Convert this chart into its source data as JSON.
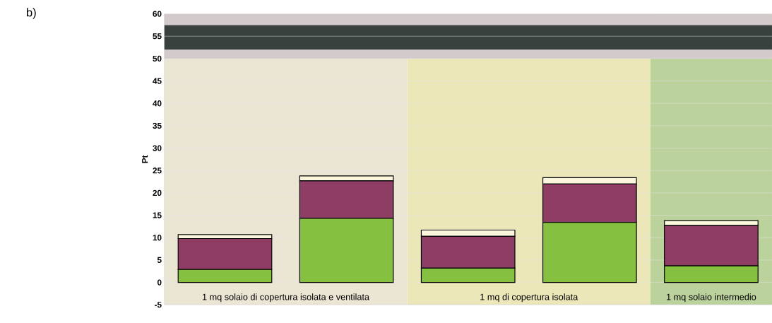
{
  "chart_data": {
    "type": "bar",
    "stacked": true,
    "ylabel": "Pt",
    "categories": [
      null,
      null,
      null,
      null,
      null
    ],
    "series": [
      {
        "color": "#86c040",
        "values": [
          2.9,
          14.3,
          3.2,
          13.4,
          3.7
        ]
      },
      {
        "color": "#8e3d65",
        "values": [
          6.9,
          8.4,
          7.1,
          8.6,
          9.0
        ]
      },
      {
        "color": "#fbf6dc",
        "values": [
          0.9,
          1.1,
          1.4,
          1.4,
          1.1
        ]
      }
    ],
    "ylim": [
      -5,
      60
    ],
    "yticks": [
      -5,
      0,
      5,
      10,
      15,
      20,
      25,
      30,
      35,
      40,
      45,
      50,
      55,
      60
    ],
    "grid": "y",
    "bands": [
      {
        "axis": "y",
        "from": 50,
        "to": 60,
        "color": "#d3cbcb"
      },
      {
        "axis": "y",
        "from": 52,
        "to": 57.5,
        "color": "#38413e"
      }
    ],
    "annotations": [
      "b)",
      "1 mq solaio di copertura isolata e ventilata",
      "1 mq di copertura isolata",
      "1 mq solaio intermedio"
    ]
  }
}
